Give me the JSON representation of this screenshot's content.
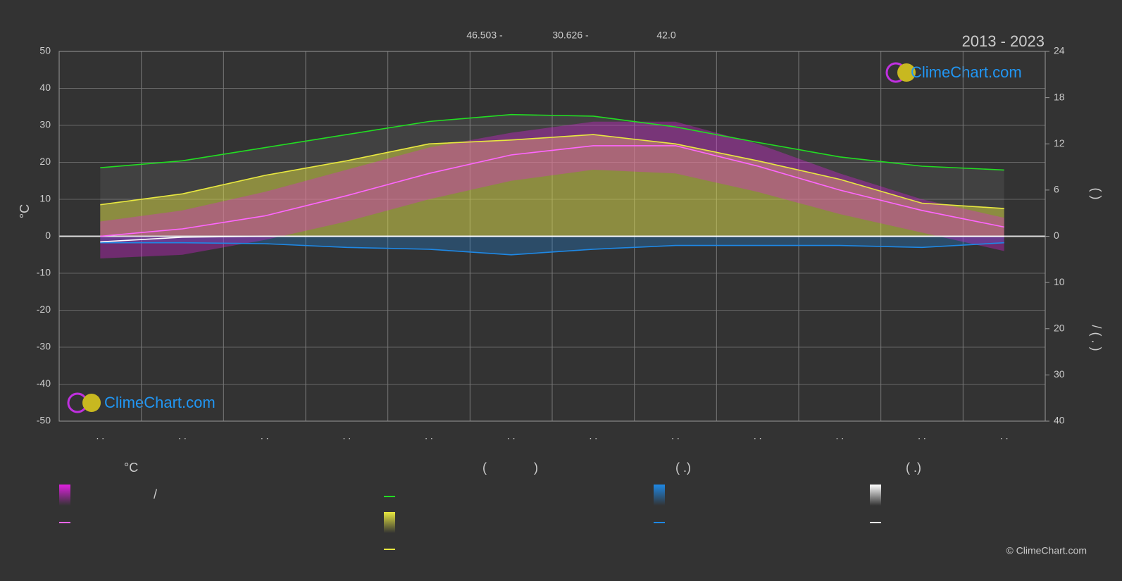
{
  "chart_data": {
    "type": "climate",
    "title": "2013 - 2023",
    "header": [
      "46.503 -",
      "30.626 -",
      "42.0"
    ],
    "y_label": "°C",
    "y2_label": "(   )",
    "y3_label": "/   ( . )",
    "watermark": "ClimeChart.com",
    "copyright": "© ClimeChart.com",
    "legend_texts": [
      "°C",
      "/",
      "(",
      ")",
      "( .)",
      "( .)"
    ],
    "categories": [
      ". .",
      ". .",
      ". .",
      ". .",
      ". .",
      ". .",
      ". .",
      ". .",
      ". .",
      ". .",
      ". .",
      ". ."
    ],
    "ylim": [
      -50,
      50
    ],
    "yticks": [
      -50,
      -40,
      -30,
      -20,
      -10,
      0,
      10,
      20,
      30,
      40,
      50
    ],
    "y2lim": [
      0,
      24
    ],
    "y2ticks": [
      0,
      6,
      12,
      18,
      24
    ],
    "y3lim": [
      0,
      40
    ],
    "y3ticks": [
      0,
      10,
      20,
      30,
      40
    ],
    "grid": true,
    "temp_range": {
      "color": "#e020e0",
      "max": [
        4,
        7,
        12,
        18,
        24,
        28,
        31,
        31,
        25,
        17,
        10,
        5
      ],
      "min": [
        -6,
        -5,
        -1,
        4,
        10,
        15,
        18,
        17,
        12,
        6,
        1,
        -4
      ]
    },
    "series": [
      {
        "color": "#ff66ff",
        "axis": "y",
        "values": [
          0,
          2,
          5.5,
          11,
          17,
          22,
          24.5,
          24.5,
          19,
          12.5,
          7,
          2.5
        ]
      },
      {
        "color": "#22dd22",
        "axis": "y2",
        "values": [
          8.9,
          9.8,
          11.5,
          13.2,
          14.9,
          15.8,
          15.6,
          14.2,
          12.2,
          10.3,
          9.1,
          8.6
        ]
      },
      {
        "color": "#e8e840",
        "axis": "y2",
        "values": [
          4.1,
          5.5,
          7.9,
          9.8,
          12.0,
          12.5,
          13.2,
          12.0,
          9.8,
          7.4,
          4.3,
          3.6
        ]
      },
      {
        "color": "#1e88e5",
        "axis": "y3",
        "values": [
          1.4,
          1.4,
          1.6,
          2.4,
          2.8,
          4.0,
          2.8,
          2.0,
          2.0,
          2.0,
          2.4,
          1.4
        ]
      },
      {
        "color": "#ffffff",
        "axis": "y3",
        "values": [
          1.2,
          0.2,
          0,
          0,
          0,
          0,
          0,
          0,
          0,
          0,
          0,
          0
        ]
      }
    ]
  }
}
